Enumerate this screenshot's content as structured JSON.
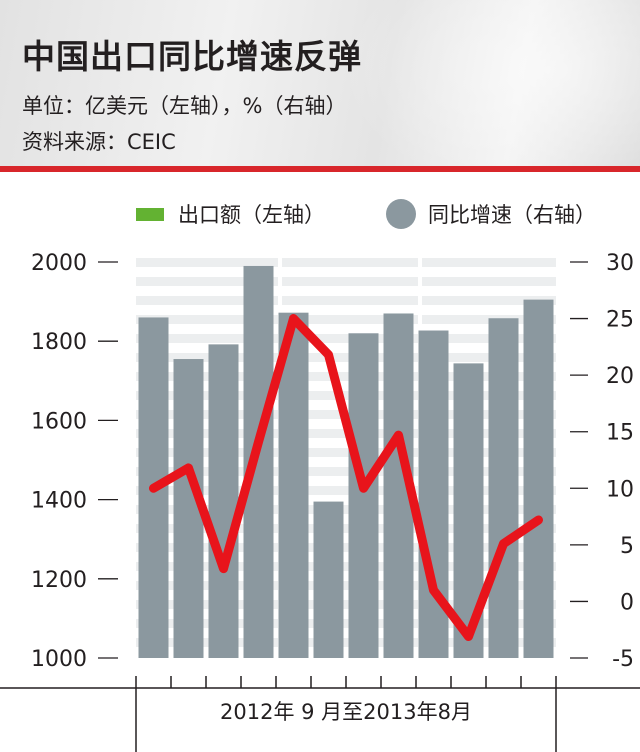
{
  "header": {
    "title": "中国出口同比增速反弹",
    "subtitle": "单位：亿美元（左轴），%（右轴）",
    "source": "资料来源：CEIC"
  },
  "legend": {
    "bar_label": "出口额（左轴）",
    "line_label": "同比增速（右轴）"
  },
  "colors": {
    "bar": "#8b989f",
    "line": "#e8141b",
    "legend_bar": "#63b232",
    "header_rule": "#d8262b"
  },
  "chart_data": {
    "type": "bar",
    "xlabel": "2012年 9 月至2013年8月",
    "ylabel": "",
    "ylim": [
      1000,
      2000
    ],
    "yticks": [
      "2000",
      "1800",
      "1600",
      "1400",
      "1200",
      "1000"
    ],
    "y2lim": [
      -5,
      30
    ],
    "y2ticks": [
      "30",
      "25",
      "20",
      "15",
      "10",
      "5",
      "0",
      "-5"
    ],
    "categories": [
      "2012-09",
      "2012-10",
      "2012-11",
      "2012-12",
      "2013-01",
      "2013-02",
      "2013-03",
      "2013-04",
      "2013-05",
      "2013-06",
      "2013-07",
      "2013-08"
    ],
    "series": [
      {
        "name": "出口额（左轴）",
        "axis": "left",
        "type": "bar",
        "values": [
          1860,
          1755,
          1792,
          1990,
          1872,
          1395,
          1820,
          1870,
          1827,
          1744,
          1858,
          1905
        ]
      },
      {
        "name": "同比增速（右轴）",
        "axis": "right",
        "type": "line",
        "values": [
          10,
          11.8,
          2.9,
          14.1,
          25,
          21.8,
          10,
          14.7,
          1.0,
          -3.1,
          5.1,
          7.2
        ]
      }
    ]
  }
}
